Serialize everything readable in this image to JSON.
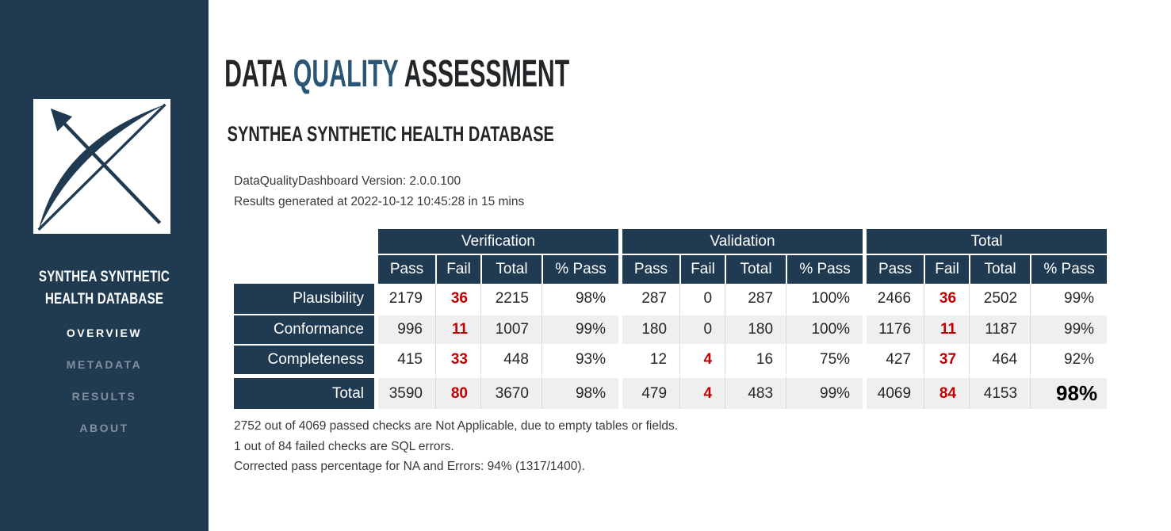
{
  "sidebar": {
    "title": "SYNTHEA SYNTHETIC HEALTH DATABASE",
    "nav": [
      {
        "label": "OVERVIEW",
        "active": true
      },
      {
        "label": "METADATA",
        "active": false
      },
      {
        "label": "RESULTS",
        "active": false
      },
      {
        "label": "ABOUT",
        "active": false
      }
    ]
  },
  "header": {
    "title_part1": "DATA",
    "title_accent": "QUALITY",
    "title_part2": "ASSESSMENT",
    "subtitle": "SYNTHEA SYNTHETIC HEALTH DATABASE",
    "version_line": "DataQualityDashboard Version: 2.0.0.100",
    "generated_line": "Results generated at 2022-10-12 10:45:28 in 15 mins"
  },
  "table": {
    "groups": [
      "Verification",
      "Validation",
      "Total"
    ],
    "sub_headers": [
      "Pass",
      "Fail",
      "Total",
      "% Pass"
    ],
    "rows": [
      {
        "label": "Plausibility",
        "cells": [
          "2179",
          "36",
          "2215",
          "98%",
          "287",
          "0",
          "287",
          "100%",
          "2466",
          "36",
          "2502",
          "99%"
        ]
      },
      {
        "label": "Conformance",
        "cells": [
          "996",
          "11",
          "1007",
          "99%",
          "180",
          "0",
          "180",
          "100%",
          "1176",
          "11",
          "1187",
          "99%"
        ]
      },
      {
        "label": "Completeness",
        "cells": [
          "415",
          "33",
          "448",
          "93%",
          "12",
          "4",
          "16",
          "75%",
          "427",
          "37",
          "464",
          "92%"
        ]
      },
      {
        "label": "Total",
        "is_total": true,
        "cells": [
          "3590",
          "80",
          "3670",
          "98%",
          "479",
          "4",
          "483",
          "99%",
          "4069",
          "84",
          "4153",
          "98%"
        ]
      }
    ]
  },
  "notes": [
    "2752 out of 4069 passed checks are Not Applicable, due to empty tables or fields.",
    "1 out of 84 failed checks are SQL errors.",
    "Corrected pass percentage for NA and Errors: 94% (1317/1400)."
  ],
  "colors": {
    "navy": "#1F3A51",
    "accent_blue": "#2B5574",
    "fail_red": "#C00000",
    "alt_row": "#EFEFEF"
  }
}
